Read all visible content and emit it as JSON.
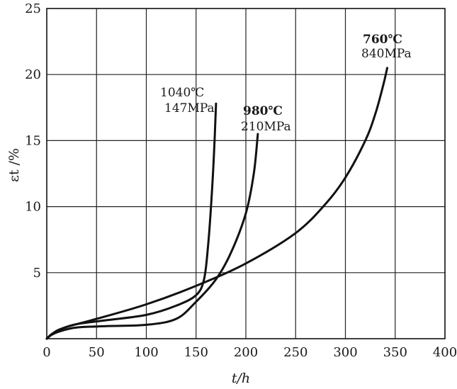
{
  "chart_data": {
    "type": "line",
    "title": "",
    "xlabel": "t/h",
    "ylabel": "εt /%",
    "xlim": [
      0,
      400
    ],
    "ylim": [
      0,
      25
    ],
    "xticks": [
      "0",
      "50",
      "100",
      "150",
      "200",
      "250",
      "300",
      "350",
      "400"
    ],
    "yticks": [
      "5",
      "10",
      "15",
      "20",
      "25"
    ],
    "grid": true,
    "series": [
      {
        "name": "1040℃ 147MPa",
        "label_lines": [
          "1040℃",
          "147MPa"
        ],
        "x": [
          0,
          5,
          15,
          30,
          60,
          100,
          130,
          150,
          158,
          162,
          165,
          168,
          170
        ],
        "y": [
          0,
          0.35,
          0.75,
          1.1,
          1.4,
          1.8,
          2.5,
          3.3,
          4.5,
          7.0,
          10.0,
          14.0,
          17.8
        ]
      },
      {
        "name": "980℃ 210MPa",
        "label_lines": [
          "980℃",
          "210MPa"
        ],
        "x": [
          0,
          5,
          15,
          30,
          60,
          100,
          130,
          150,
          170,
          185,
          200,
          208,
          212
        ],
        "y": [
          0,
          0.3,
          0.6,
          0.85,
          0.95,
          1.05,
          1.5,
          2.8,
          4.5,
          6.5,
          9.5,
          12.5,
          15.5
        ]
      },
      {
        "name": "760℃ 840MPa",
        "label_lines": [
          "760℃",
          "840MPa"
        ],
        "x": [
          0,
          10,
          25,
          50,
          100,
          150,
          200,
          250,
          280,
          300,
          320,
          330,
          338,
          342
        ],
        "y": [
          0,
          0.6,
          1.0,
          1.5,
          2.6,
          4.0,
          5.7,
          8.0,
          10.2,
          12.2,
          15.0,
          17.0,
          19.2,
          20.5
        ]
      }
    ]
  }
}
